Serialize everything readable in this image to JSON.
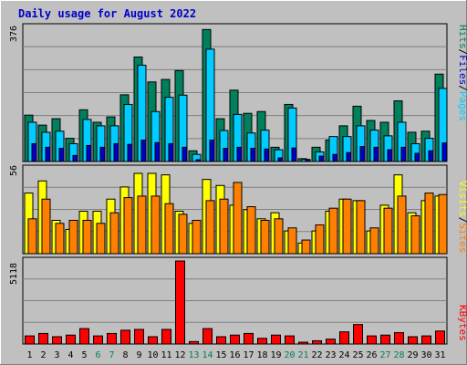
{
  "chart_data": {
    "type": "bar",
    "title": "Daily usage for August 2022",
    "categories": [
      "1",
      "2",
      "3",
      "4",
      "5",
      "6",
      "7",
      "8",
      "9",
      "10",
      "11",
      "12",
      "13",
      "14",
      "15",
      "16",
      "17",
      "18",
      "19",
      "20",
      "21",
      "22",
      "23",
      "24",
      "25",
      "26",
      "27",
      "28",
      "29",
      "30",
      "31"
    ],
    "weekend_days": [
      "6",
      "7",
      "13",
      "14",
      "20",
      "21",
      "27",
      "28"
    ],
    "panels": [
      {
        "name": "hits",
        "ymax": 376,
        "ymax_label": "376",
        "labels": [
          "Pages",
          "Files",
          "Hits"
        ],
        "series": [
          {
            "name": "Hits",
            "color": "#00805c",
            "values": [
              130,
              102,
              120,
              65,
              145,
              110,
              125,
              187,
              293,
              223,
              230,
              255,
              30,
              370,
              120,
              200,
              135,
              140,
              40,
              160,
              8,
              40,
              60,
              100,
              155,
              115,
              110,
              170,
              82,
              85,
              245
            ]
          },
          {
            "name": "Files",
            "color": "#00ccff",
            "values": [
              110,
              82,
              85,
              50,
              118,
              100,
              100,
              160,
              270,
              140,
              180,
              186,
              20,
              315,
              87,
              132,
              80,
              88,
              33,
              150,
              6,
              27,
              70,
              70,
              100,
              88,
              72,
              110,
              50,
              65,
              205
            ]
          },
          {
            "name": "Pages",
            "color": "#0000cc",
            "values": [
              50,
              40,
              37,
              17,
              45,
              40,
              50,
              48,
              60,
              53,
              50,
              40,
              5,
              60,
              37,
              40,
              37,
              35,
              10,
              38,
              3,
              15,
              20,
              25,
              42,
              40,
              33,
              40,
              23,
              30,
              52
            ]
          }
        ]
      },
      {
        "name": "visits",
        "ymax": 56,
        "ymax_label": "56",
        "labels": [
          "Sites",
          "Visits"
        ],
        "series": [
          {
            "name": "Visits",
            "color": "#ffff00",
            "values": [
              40,
              48,
              22,
              16,
              28,
              28,
              36,
              44,
              53,
              53,
              52,
              28,
              20,
              49,
              45,
              32,
              29,
              23,
              27,
              15,
              7,
              15,
              28,
              36,
              35,
              15,
              32,
              52,
              27,
              35,
              38
            ]
          },
          {
            "name": "Sites",
            "color": "#ff8000",
            "values": [
              23,
              36,
              20,
              22,
              22,
              20,
              27,
              37,
              38,
              38,
              33,
              26,
              22,
              35,
              36,
              47,
              31,
              22,
              23,
              17,
              9,
              19,
              30,
              36,
              35,
              17,
              30,
              38,
              25,
              40,
              39
            ]
          }
        ]
      },
      {
        "name": "kbytes",
        "ymax": 5118,
        "ymax_label": "5118",
        "labels": [
          "KBytes"
        ],
        "series": [
          {
            "name": "KBytes",
            "color": "#ff0000",
            "values": [
              500,
              650,
              450,
              550,
              950,
              500,
              650,
              850,
              900,
              450,
              900,
              5118,
              150,
              950,
              450,
              550,
              650,
              350,
              550,
              500,
              100,
              200,
              300,
              750,
              1200,
              500,
              550,
              700,
              450,
              500,
              800
            ]
          }
        ]
      }
    ]
  }
}
